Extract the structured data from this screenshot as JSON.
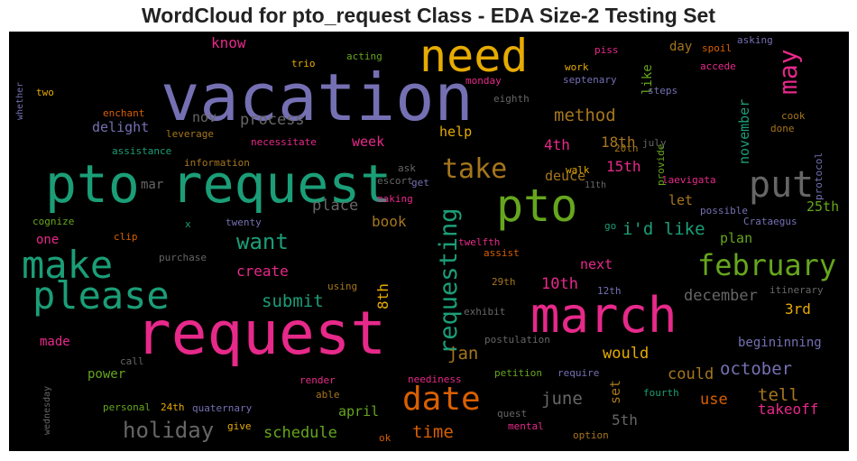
{
  "title": "WordCloud for pto_request Class - EDA Size-2 Testing Set",
  "palette": {
    "background": "#000000",
    "pink": "#e7298a",
    "teal": "#1b9e77",
    "orange": "#d95f02",
    "purple": "#7570b3",
    "green": "#66a61e",
    "gold": "#e6ab02",
    "brown": "#a6761d",
    "gray": "#666666"
  },
  "words": {
    "vacation": "vacation",
    "request": "request",
    "pto_request": "pto request",
    "need": "need",
    "pto": "pto",
    "march": "march",
    "make": "make",
    "please": "please",
    "put": "put",
    "february": "february",
    "date": "date",
    "requesting": "requesting",
    "take": "take",
    "may": "may",
    "want": "want",
    "holiday": "holiday",
    "schedule": "schedule",
    "submit": "submit",
    "time": "time",
    "method": "method",
    "idlike": "i'd like",
    "december": "december",
    "october": "october",
    "tell": "tell",
    "takeoff": "takeoff",
    "june": "june",
    "jan": "jan",
    "process": "process",
    "place": "place",
    "book": "book",
    "create": "create",
    "know": "know",
    "delight": "delight",
    "nov": "nov",
    "week": "week",
    "help": "help",
    "4th": "4th",
    "18th": "18th",
    "15th": "15th",
    "deuce": "deuce",
    "let": "let",
    "plan": "plan",
    "10th": "10th",
    "next": "next",
    "8th": "8th",
    "would": "would",
    "could": "could",
    "use": "use",
    "april": "april",
    "3rd": "3rd",
    "25th": "25th",
    "5th": "5th",
    "set": "set",
    "november": "november",
    "begininning": "begininning",
    "power": "power",
    "made": "made",
    "one": "one",
    "mar": "mar",
    "like": "like",
    "day": "day",
    "work": "work",
    "septenary": "septenary",
    "spoil": "spoil",
    "accede": "accede",
    "asking": "asking",
    "piss": "piss",
    "acting": "acting",
    "trio": "trio",
    "two": "two",
    "whether": "whether",
    "enchant": "enchant",
    "leverage": "leverage",
    "necessitate": "necessitate",
    "assistance": "assistance",
    "information": "information",
    "ask": "ask",
    "escort": "escort",
    "making": "making",
    "get": "get",
    "walk": "walk",
    "provide": "provide",
    "protocol": "protocol",
    "cook": "cook",
    "done": "done",
    "20th": "20th",
    "july": "july",
    "11th": "11th",
    "laevigata": "laevigata",
    "possible": "possible",
    "crataegus": "Crataegus",
    "cognize": "cognize",
    "x": "x",
    "twenty": "twenty",
    "clip": "clip",
    "purchase": "purchase",
    "twelfth": "twelfth",
    "assist": "assist",
    "go": "go",
    "using": "using",
    "29th": "29th",
    "12th": "12th",
    "itinerary": "itinerary",
    "exhibit": "exhibit",
    "postulation": "postulation",
    "call": "call",
    "render": "render",
    "able": "able",
    "neediness": "neediness",
    "petition": "petition",
    "require": "require",
    "fourth": "fourth",
    "wednesday": "wednesday",
    "personal": "personal",
    "24th": "24th",
    "quaternary": "quaternary",
    "give": "give",
    "ok": "ok",
    "quest": "quest",
    "mental": "mental",
    "option": "option",
    "eighth": "eighth",
    "monday": "monday",
    "steps": "steps"
  }
}
